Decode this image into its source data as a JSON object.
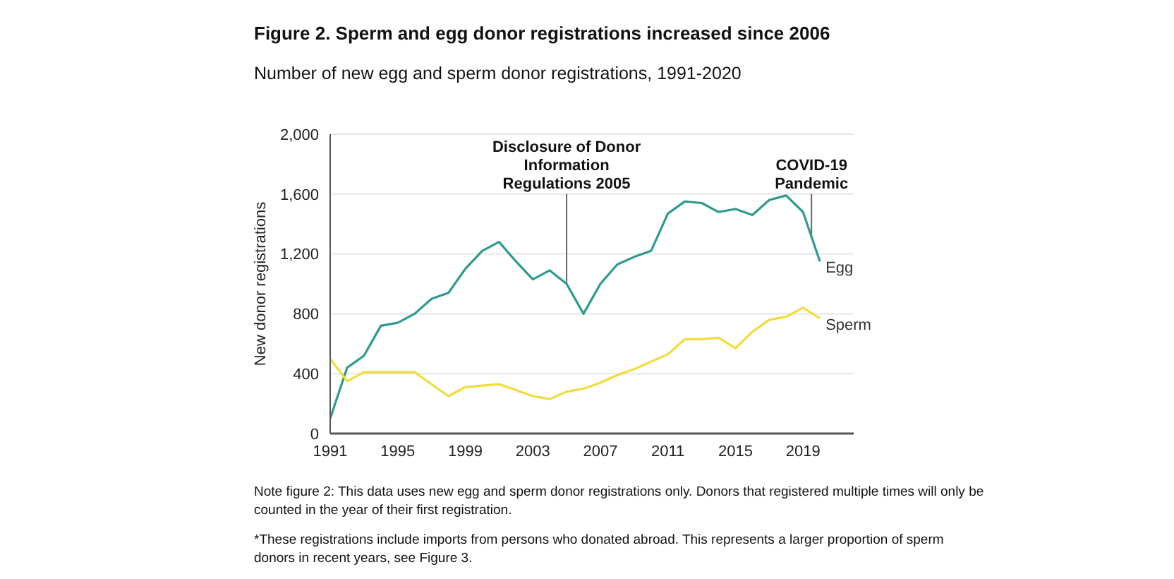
{
  "chart_data": {
    "type": "line",
    "title": "Figure 2. Sperm and egg donor registrations increased since 2006",
    "subtitle": "Number of new egg and sperm donor registrations, 1991-2020",
    "ylabel": "New donor registrations",
    "x": [
      1991,
      1992,
      1993,
      1994,
      1995,
      1996,
      1997,
      1998,
      1999,
      2000,
      2001,
      2002,
      2003,
      2004,
      2005,
      2006,
      2007,
      2008,
      2009,
      2010,
      2011,
      2012,
      2013,
      2014,
      2015,
      2016,
      2017,
      2018,
      2019,
      2020
    ],
    "series": [
      {
        "name": "Egg",
        "color": "#2e9a8e",
        "values": [
          100,
          440,
          520,
          720,
          740,
          800,
          900,
          940,
          1100,
          1220,
          1280,
          1150,
          1030,
          1090,
          1000,
          800,
          1000,
          1130,
          1180,
          1220,
          1470,
          1550,
          1540,
          1480,
          1500,
          1460,
          1560,
          1590,
          1480,
          1150
        ]
      },
      {
        "name": "Sperm",
        "color": "#f2dc3a",
        "values": [
          500,
          350,
          410,
          410,
          410,
          410,
          330,
          250,
          310,
          320,
          330,
          290,
          250,
          230,
          280,
          300,
          340,
          390,
          430,
          480,
          530,
          630,
          630,
          640,
          570,
          680,
          760,
          780,
          840,
          770
        ]
      }
    ],
    "xlim": [
      1991,
      2022
    ],
    "xticks": [
      1991,
      1995,
      1999,
      2003,
      2007,
      2011,
      2015,
      2019
    ],
    "ylim": [
      0,
      2000
    ],
    "yticks": [
      0,
      400,
      800,
      {
        "value": 1200,
        "label": "1,200"
      },
      {
        "value": 1600,
        "label": "1,600"
      },
      {
        "value": 2000,
        "label": "2,000"
      }
    ],
    "grid": "y",
    "legend": false,
    "marker": "none",
    "line_style": "solid",
    "annotations": [
      {
        "text": "Disclosure of Donor Information Regulations 2005",
        "x": 2005,
        "y": 1005
      },
      {
        "text": "COVID-19 Pandemic",
        "x": 2019.5,
        "y": 1300
      },
      "Note figure 2: This data uses new egg and sperm donor registrations only. Donors that registered multiple times will only be counted in the year of their first registration.",
      "*These registrations include imports from persons who donated abroad. This represents a larger proportion of sperm donors in recent years, see Figure 3."
    ]
  }
}
